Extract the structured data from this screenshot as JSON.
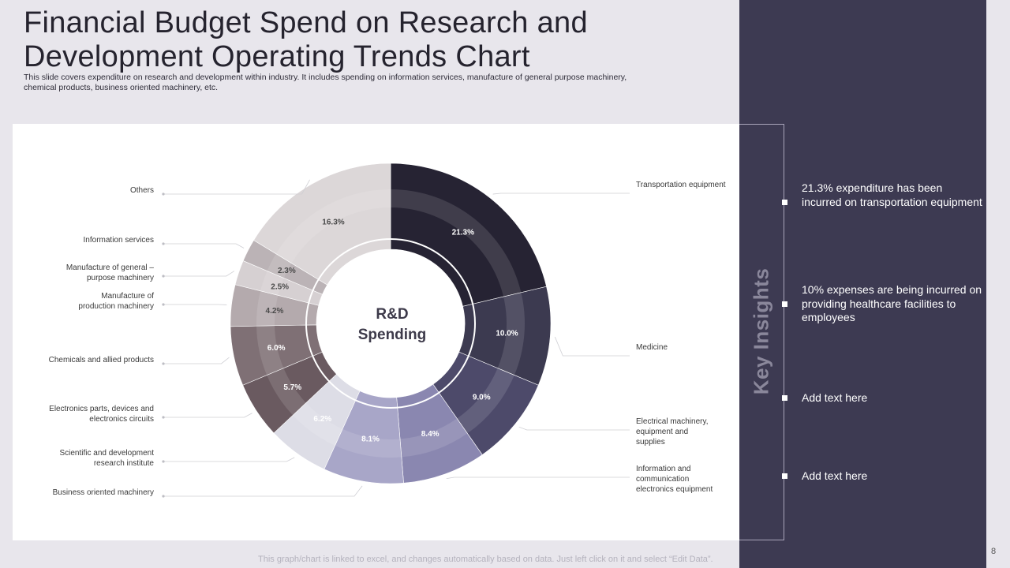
{
  "header": {
    "title": "Financial Budget Spend on Research and Development Operating Trends Chart",
    "subtitle": "This slide covers expenditure on research and development within industry. It includes spending on information services, manufacture of general purpose machinery, chemical products, business oriented machinery, etc."
  },
  "chart_data": {
    "type": "pie",
    "variant": "donut",
    "title": "R&D Spending",
    "center_label": [
      "R&D",
      "Spending"
    ],
    "unit": "%",
    "categories": [
      "Transportation equipment",
      "Medicine",
      "Electrical machinery, equipment and supplies",
      "Information and communication electronics equipment",
      "Business oriented machinery",
      "Scientific and development research institute",
      "Electronics parts, devices and electronics circuits",
      "Chemicals and allied products",
      "Manufacture of production machinery",
      "Manufacture of general – purpose machinery",
      "Information services",
      "Others"
    ],
    "values": [
      21.3,
      10.0,
      9.0,
      8.4,
      8.1,
      6.2,
      5.7,
      6.0,
      4.2,
      2.5,
      2.3,
      16.3
    ],
    "value_labels": [
      "21.3%",
      "10.0%",
      "9.0%",
      "8.4%",
      "8.1%",
      "6.2%",
      "5.7%",
      "6.0%",
      "4.2%",
      "2.5%",
      "2.3%",
      "16.3%"
    ],
    "colors": [
      "#262333",
      "#3c3a50",
      "#4d4a6a",
      "#8a87b0",
      "#a8a6c8",
      "#dddde6",
      "#6a5a60",
      "#7f7075",
      "#b4aaad",
      "#d6d0d2",
      "#bbb3b6",
      "#dcd7d8"
    ],
    "value_text_colors": [
      "#ffffff",
      "#ffffff",
      "#ffffff",
      "#ffffff",
      "#ffffff",
      "#ffffff",
      "#ffffff",
      "#ffffff",
      "#4a4a4a",
      "#4a4a4a",
      "#4a4a4a",
      "#4a4a4a"
    ],
    "label_lines": [
      [
        "Transportation equipment"
      ],
      [
        "Medicine"
      ],
      [
        "Electrical machinery,",
        "equipment and",
        "supplies"
      ],
      [
        "Information and",
        "communication",
        "electronics equipment"
      ],
      [
        "Business oriented  machinery"
      ],
      [
        "Scientific and development",
        "research institute"
      ],
      [
        "Electronics parts, devices and",
        "electronics circuits"
      ],
      [
        "Chemicals and allied products"
      ],
      [
        "Manufacture of",
        "production machinery"
      ],
      [
        "Manufacture of general –",
        "purpose machinery"
      ],
      [
        "Information  services"
      ],
      [
        "Others"
      ]
    ]
  },
  "insights": {
    "heading": "Key Insights",
    "items": [
      "21.3% expenditure has been incurred on transportation equipment",
      "10% expenses are being incurred on providing healthcare facilities to employees",
      "Add text here",
      "Add text here"
    ]
  },
  "footer": {
    "note": "This graph/chart is linked to excel,  and changes automatically based on data. Just left click on it and select “Edit Data”.",
    "page_number": "8"
  }
}
